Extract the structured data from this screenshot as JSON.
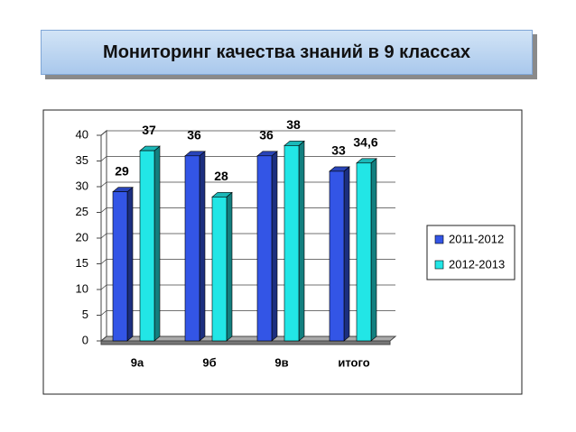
{
  "chart_data": {
    "type": "bar",
    "title": "Мониторинг качества знаний в 9 классах",
    "categories": [
      "9а",
      "9б",
      "9в",
      "итого"
    ],
    "series": [
      {
        "name": "2011-2012",
        "color": "#3355e6",
        "values": [
          29,
          36,
          36,
          33
        ]
      },
      {
        "name": "2012-2013",
        "color": "#22e6e6",
        "values": [
          37,
          28,
          38,
          34.6
        ],
        "value_labels": [
          "37",
          "28",
          "38",
          "34,6"
        ]
      }
    ],
    "ylim": [
      0,
      40
    ],
    "yticks": [
      0,
      5,
      10,
      15,
      20,
      25,
      30,
      35,
      40
    ],
    "grid": true
  }
}
